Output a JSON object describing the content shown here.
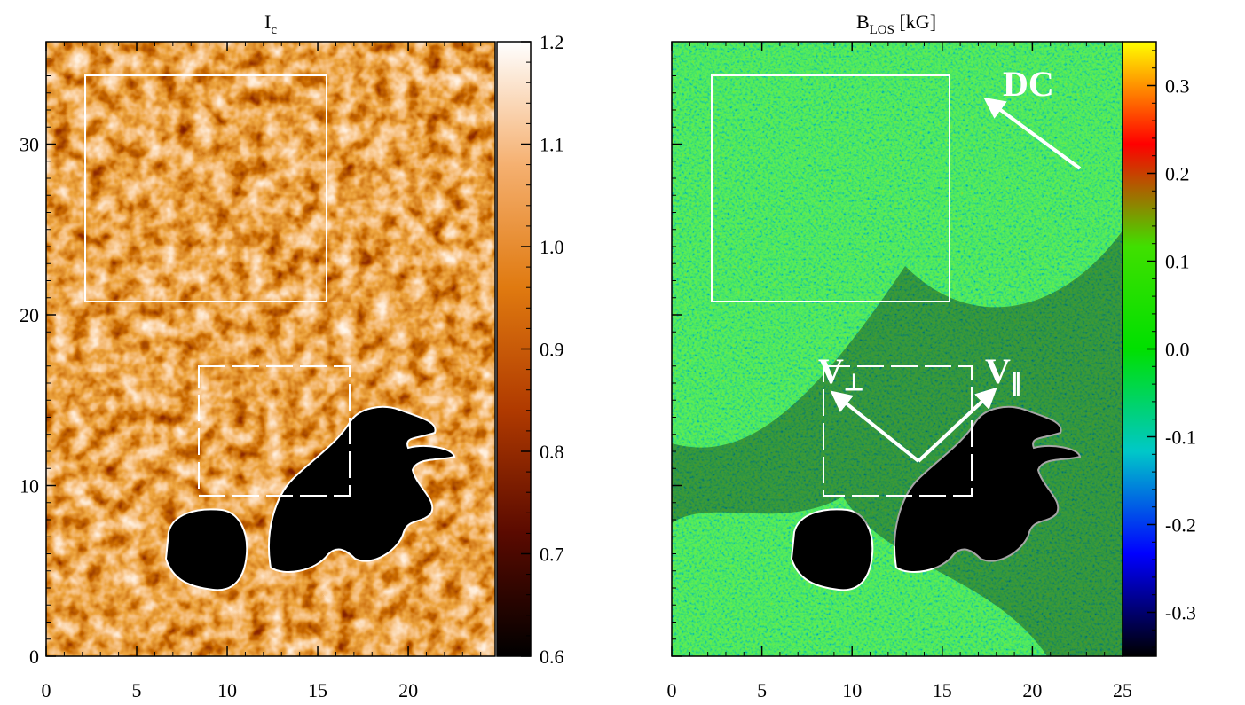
{
  "chart_data": [
    {
      "type": "heatmap",
      "title": {
        "main": "I",
        "sub": "c"
      },
      "xlim": [
        0,
        24.8
      ],
      "xticks": [
        0,
        5,
        10,
        15,
        20
      ],
      "ylim": [
        0,
        36
      ],
      "yticks": [
        0,
        10,
        20,
        30
      ],
      "clim": [
        0.6,
        1.2
      ],
      "cticks": [
        {
          "value": 0.6,
          "label": "0.6"
        },
        {
          "value": 0.7,
          "label": "0.7"
        },
        {
          "value": 0.8,
          "label": "0.8"
        },
        {
          "value": 0.9,
          "label": "0.9"
        },
        {
          "value": 1.0,
          "label": "1.0"
        },
        {
          "value": 1.1,
          "label": "1.1"
        },
        {
          "value": 1.2,
          "label": "1.2"
        }
      ],
      "colormap": [
        "#000000",
        "#5a0a00",
        "#b03a00",
        "#e07a10",
        "#f5b070",
        "#ffffff"
      ]
    },
    {
      "type": "heatmap",
      "title": {
        "main": "B",
        "sub": "LOS",
        "rest": " [kG]"
      },
      "xlim": [
        0,
        25
      ],
      "xticks": [
        0,
        5,
        10,
        15,
        20,
        25
      ],
      "ylim": [
        0,
        36
      ],
      "clim": [
        -0.35,
        0.35
      ],
      "cticks": [
        {
          "value": -0.3,
          "label": "-0.3"
        },
        {
          "value": -0.2,
          "label": "-0.2"
        },
        {
          "value": -0.1,
          "label": "-0.1"
        },
        {
          "value": 0.0,
          "label": "0.0"
        },
        0.1,
        0.2,
        0.3
      ],
      "colormap": [
        "#000000",
        "#0000ff",
        "#00c8c8",
        "#00e000",
        "#40e000",
        "#ff0000",
        "#ffff00"
      ],
      "annotations": [
        {
          "main": "DC"
        },
        {
          "main": "V",
          "sub": "⊥"
        },
        {
          "main": "V",
          "sub": "∥"
        }
      ]
    }
  ]
}
